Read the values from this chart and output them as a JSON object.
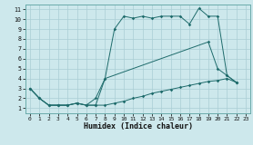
{
  "xlabel": "Humidex (Indice chaleur)",
  "background_color": "#cde8ec",
  "grid_color": "#aacdd4",
  "line_color": "#1e6b6b",
  "xlim": [
    -0.5,
    23.5
  ],
  "ylim": [
    0.5,
    11.5
  ],
  "xticks": [
    0,
    1,
    2,
    3,
    4,
    5,
    6,
    7,
    8,
    9,
    10,
    11,
    12,
    13,
    14,
    15,
    16,
    17,
    18,
    19,
    20,
    21,
    22,
    23
  ],
  "yticks": [
    1,
    2,
    3,
    4,
    5,
    6,
    7,
    8,
    9,
    10,
    11
  ],
  "series": [
    {
      "x": [
        0,
        1,
        2,
        3,
        4,
        5,
        6,
        7,
        8,
        9,
        10,
        11,
        12,
        13,
        14,
        15,
        16,
        17,
        18,
        19,
        20,
        21,
        22
      ],
      "y": [
        3,
        2,
        1.3,
        1.3,
        1.3,
        1.5,
        1.3,
        1.3,
        4.0,
        9.0,
        10.3,
        10.1,
        10.3,
        10.1,
        10.3,
        10.3,
        10.3,
        9.5,
        11.1,
        10.3,
        10.3,
        4.3,
        3.6
      ]
    },
    {
      "x": [
        0,
        1,
        2,
        3,
        4,
        5,
        6,
        7,
        8,
        19,
        20,
        21,
        22
      ],
      "y": [
        3,
        2.0,
        1.3,
        1.3,
        1.3,
        1.5,
        1.3,
        2.0,
        4.0,
        7.7,
        5.0,
        4.3,
        3.6
      ]
    },
    {
      "x": [
        0,
        1,
        2,
        3,
        4,
        5,
        6,
        7,
        8,
        9,
        10,
        11,
        12,
        13,
        14,
        15,
        16,
        17,
        18,
        19,
        20,
        21,
        22
      ],
      "y": [
        3,
        2.0,
        1.3,
        1.3,
        1.3,
        1.5,
        1.3,
        1.3,
        1.3,
        1.5,
        1.7,
        2.0,
        2.2,
        2.5,
        2.7,
        2.9,
        3.1,
        3.3,
        3.5,
        3.7,
        3.8,
        4.0,
        3.6
      ]
    }
  ]
}
